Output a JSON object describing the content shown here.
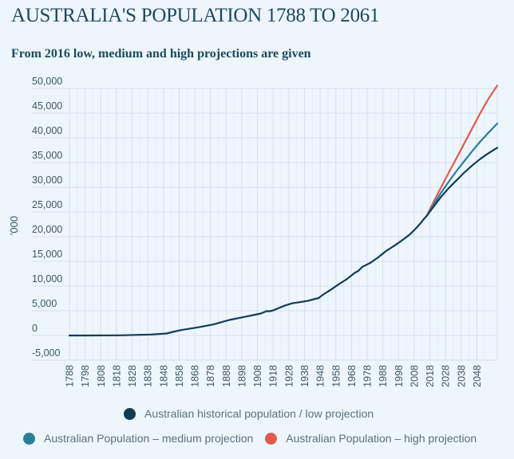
{
  "header": {
    "title": "AUSTRALIA'S POPULATION 1788 TO 2061",
    "subtitle": "From 2016 low, medium and high projections are given"
  },
  "chart_data": {
    "type": "line",
    "title": "AUSTRALIA'S POPULATION 1788 TO 2061",
    "subtitle": "From 2016 low, medium and high projections are given",
    "xlabel": "",
    "ylabel": "'000",
    "xlim": [
      1788,
      2061
    ],
    "ylim": [
      -5000,
      50000
    ],
    "grid": true,
    "legend_position": "bottom",
    "y_ticks": [
      {
        "value": 50000,
        "label": "50,000"
      },
      {
        "value": 45000,
        "label": "45,000"
      },
      {
        "value": 40000,
        "label": "40,000"
      },
      {
        "value": 35000,
        "label": "35,000"
      },
      {
        "value": 30000,
        "label": "30,000"
      },
      {
        "value": 25000,
        "label": "25,000"
      },
      {
        "value": 20000,
        "label": "20,000"
      },
      {
        "value": 15000,
        "label": "15,000"
      },
      {
        "value": 10000,
        "label": "10,000"
      },
      {
        "value": 5000,
        "label": "5,000"
      },
      {
        "value": 0,
        "label": "0"
      },
      {
        "value": -5000,
        "label": "-5,000"
      }
    ],
    "x_ticks": [
      "1788",
      "1798",
      "1808",
      "1818",
      "1828",
      "1838",
      "1848",
      "1858",
      "1868",
      "1878",
      "1888",
      "1898",
      "1908",
      "1918",
      "1928",
      "1938",
      "1948",
      "1958",
      "1968",
      "1978",
      "1988",
      "1998",
      "2008",
      "2018",
      "2028",
      "2038",
      "2048"
    ],
    "series": [
      {
        "name": "Australian historical population / low projection",
        "color": "#0f3d56",
        "x": [
          1788,
          1800,
          1820,
          1840,
          1850,
          1855,
          1860,
          1870,
          1880,
          1890,
          1900,
          1910,
          1914,
          1916,
          1918,
          1925,
          1930,
          1940,
          1947,
          1950,
          1955,
          1960,
          1965,
          1970,
          1972,
          1975,
          1980,
          1985,
          1990,
          1995,
          2000,
          2005,
          2008,
          2010,
          2012,
          2014,
          2016,
          2020,
          2025,
          2030,
          2035,
          2040,
          2045,
          2050,
          2055,
          2061
        ],
        "values": [
          0,
          5,
          30,
          190,
          400,
          800,
          1150,
          1650,
          2250,
          3150,
          3770,
          4430,
          4940,
          4920,
          5080,
          6000,
          6500,
          7000,
          7580,
          8300,
          9300,
          10400,
          11400,
          12660,
          13000,
          13900,
          14700,
          15800,
          17100,
          18100,
          19200,
          20400,
          21300,
          22000,
          22700,
          23500,
          24200,
          25900,
          28000,
          29800,
          31400,
          33000,
          34400,
          35700,
          36800,
          38000
        ]
      },
      {
        "name": "Australian Population – medium projection",
        "color": "#2b7e99",
        "x": [
          2016,
          2020,
          2025,
          2030,
          2035,
          2040,
          2045,
          2050,
          2055,
          2061
        ],
        "values": [
          24200,
          26300,
          28800,
          31100,
          33300,
          35300,
          37300,
          39200,
          40900,
          42900
        ]
      },
      {
        "name": "Australian Population – high projection",
        "color": "#e8584a",
        "x": [
          2016,
          2020,
          2025,
          2030,
          2035,
          2040,
          2045,
          2050,
          2055,
          2061
        ],
        "values": [
          24200,
          26800,
          29900,
          32900,
          35900,
          38900,
          41900,
          44900,
          47700,
          50600
        ]
      }
    ]
  },
  "legend": {
    "items": [
      {
        "label": "Australian historical population / low projection",
        "color": "#0f3d56"
      },
      {
        "label": "Australian Population – medium projection",
        "color": "#2b7e99"
      },
      {
        "label": "Australian Population – high projection",
        "color": "#e8584a"
      }
    ]
  }
}
